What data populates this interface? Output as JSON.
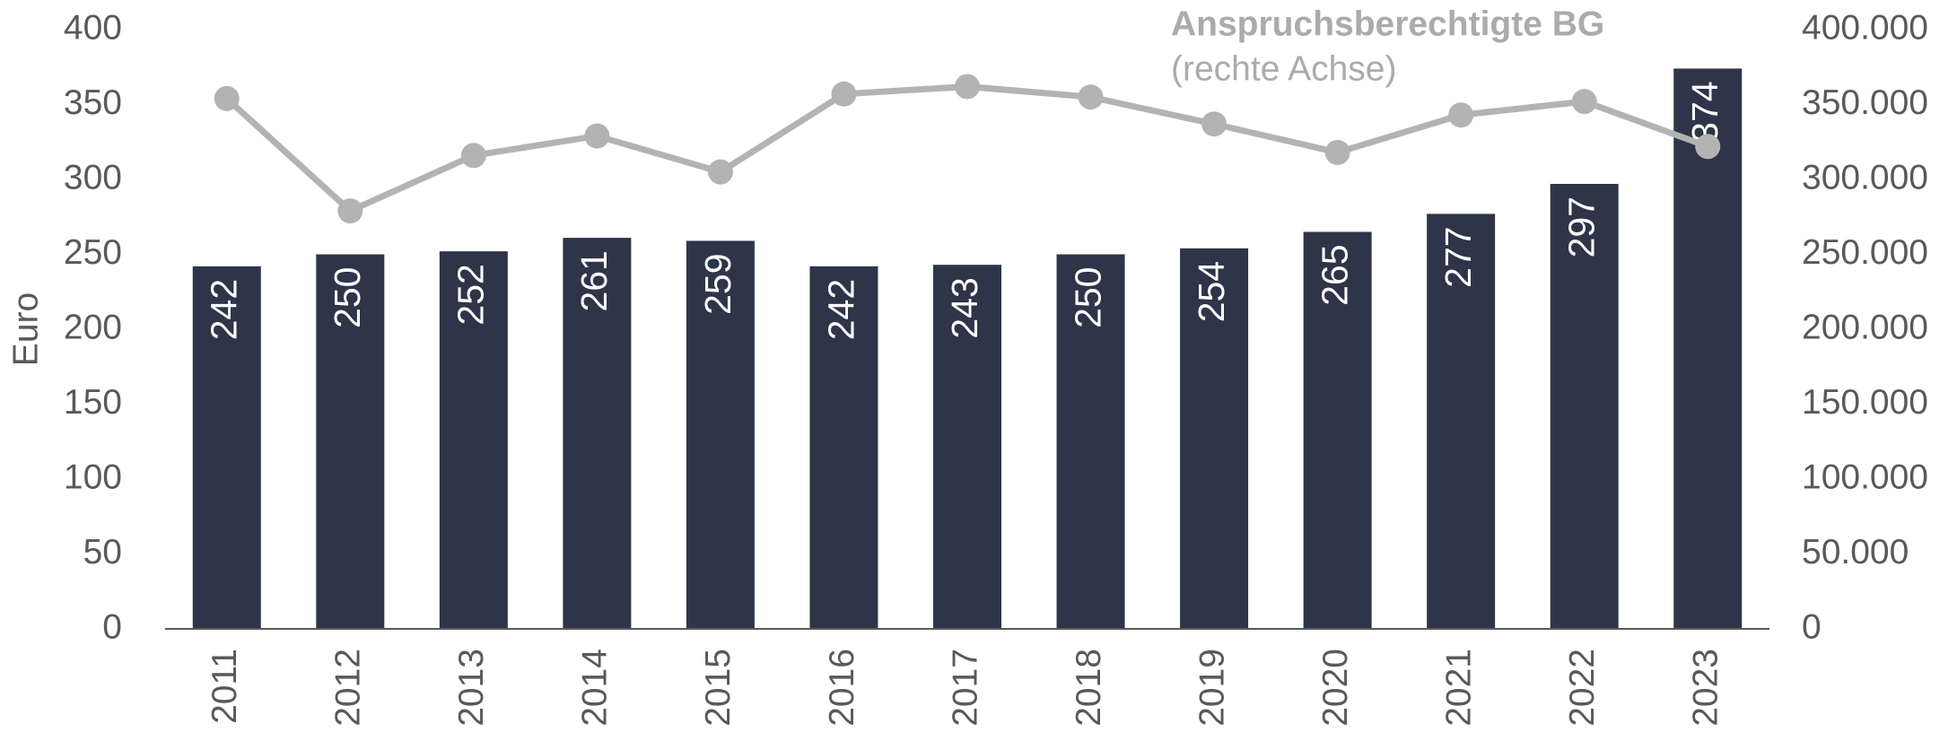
{
  "chart_data": {
    "type": "bar",
    "ylabel": "Euro",
    "categories": [
      "2011",
      "2012",
      "2013",
      "2014",
      "2015",
      "2016",
      "2017",
      "2018",
      "2019",
      "2020",
      "2021",
      "2022",
      "2023"
    ],
    "series": [
      {
        "type": "bar",
        "color": "#2e3549",
        "values": [
          242,
          250,
          252,
          261,
          259,
          242,
          243,
          250,
          254,
          265,
          277,
          297,
          374
        ]
      },
      {
        "type": "line",
        "name": "Anspruchsberechtigte BG",
        "color": "#b3b3b3",
        "axis": "y2",
        "values": [
          354000,
          279000,
          316000,
          329000,
          305000,
          357000,
          362000,
          355000,
          337000,
          318000,
          343000,
          352000,
          322000
        ]
      }
    ],
    "annotation": "(rechte Achse)",
    "ylim": [
      0,
      400
    ],
    "yticks": [
      0,
      50,
      100,
      150,
      200,
      250,
      300,
      350,
      400
    ],
    "y2lim": [
      0,
      400000
    ],
    "y2ticks": [
      0,
      {
        "value": 50000,
        "label": "50.000"
      },
      {
        "value": 100000,
        "label": "100.000"
      },
      {
        "value": 150000,
        "label": "150.000"
      },
      {
        "value": 200000,
        "label": "200.000"
      },
      {
        "value": 250000,
        "label": "250.000"
      },
      {
        "value": 300000,
        "label": "300.000"
      },
      {
        "value": 350000,
        "label": "350.000"
      },
      {
        "value": 400000,
        "label": "400.000"
      }
    ],
    "grid": false
  }
}
